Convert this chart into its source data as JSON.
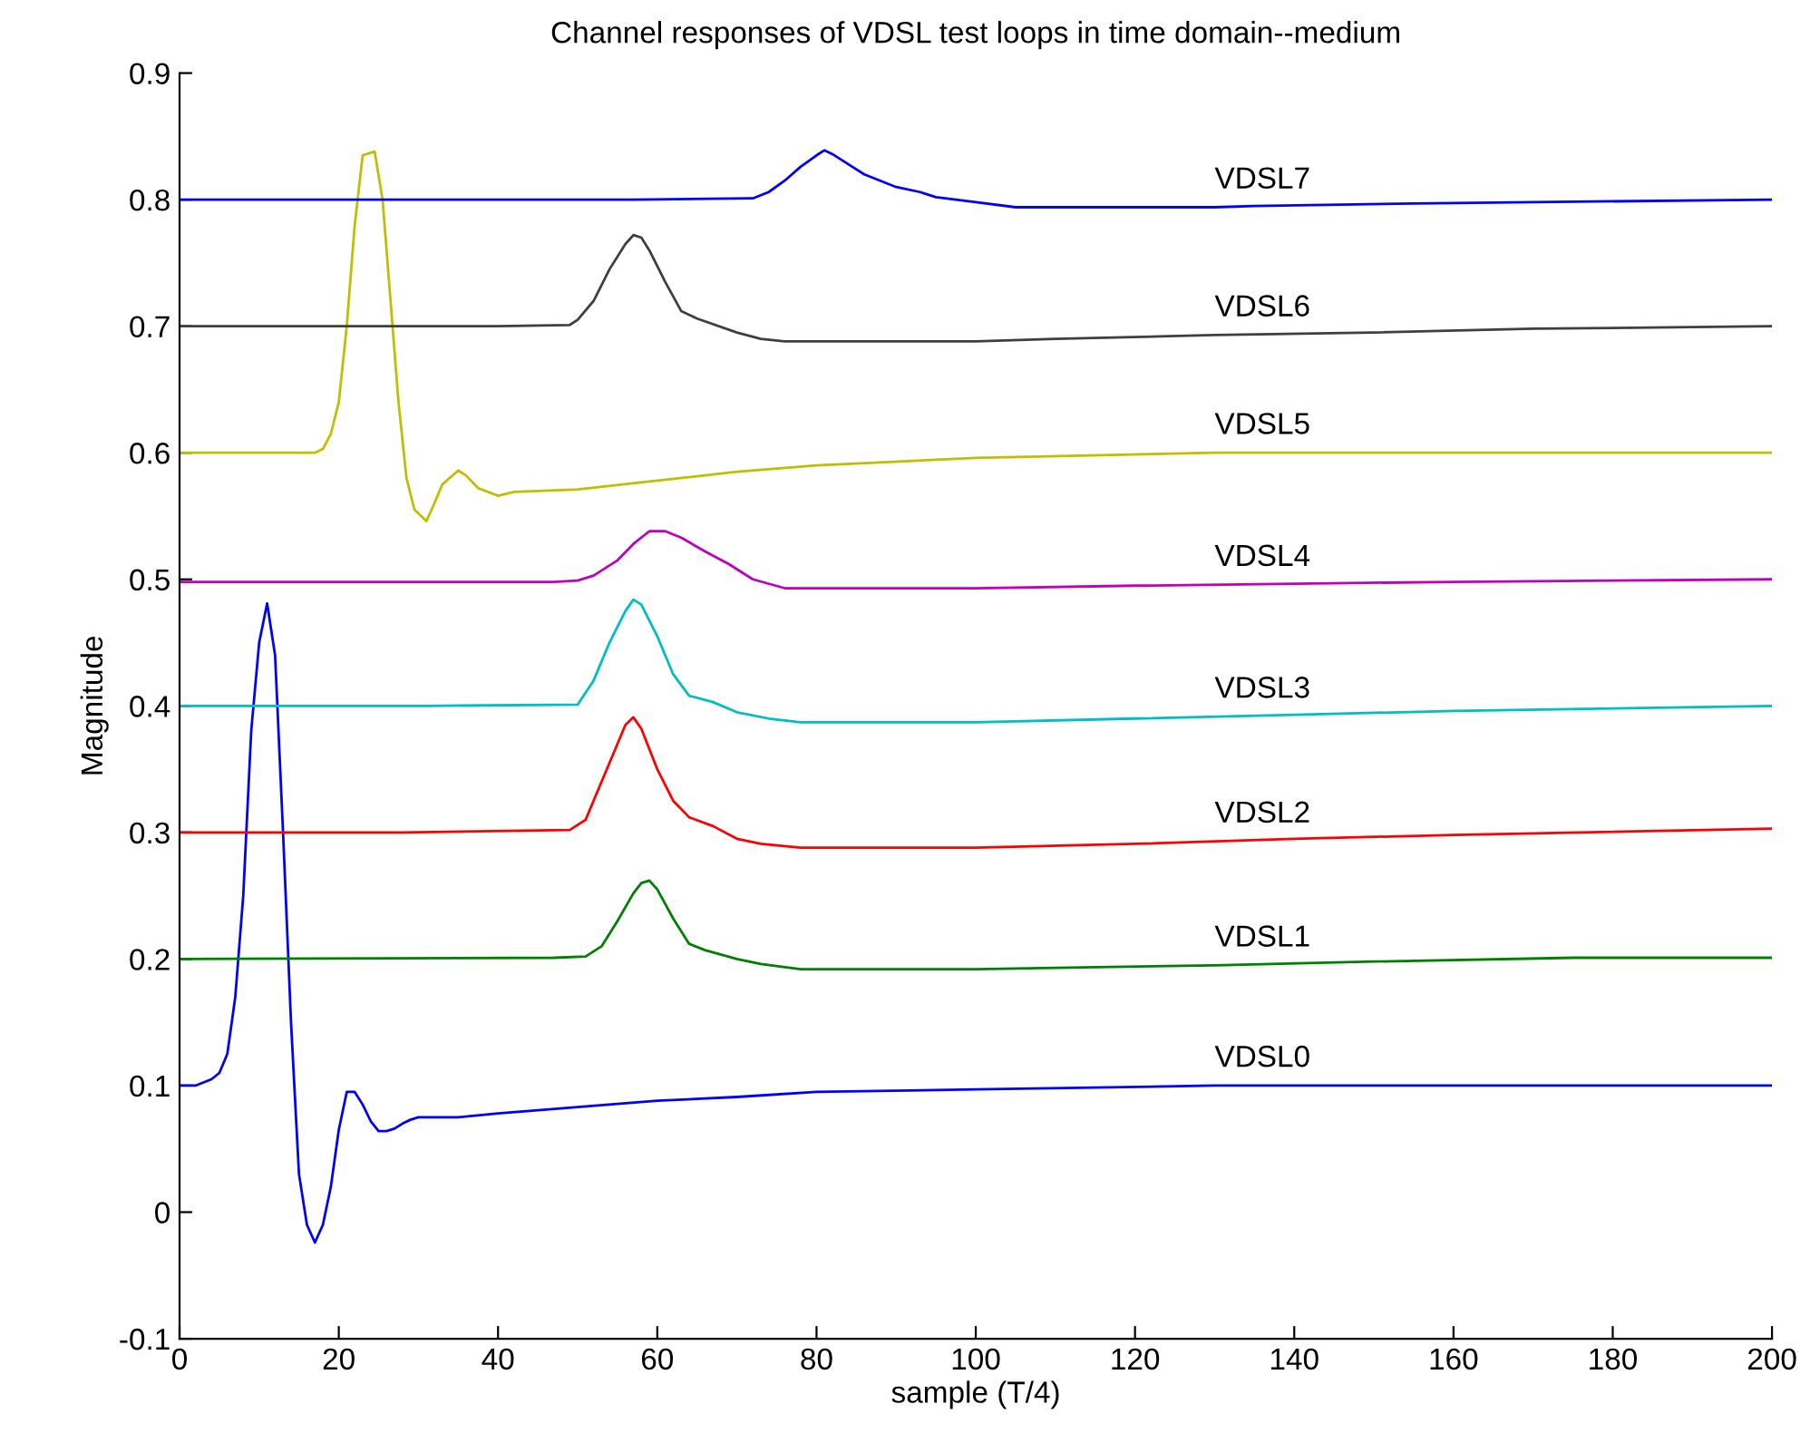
{
  "chart_data": {
    "type": "line",
    "title": "Channel responses of VDSL test loops in time domain--medium",
    "xlabel": "sample (T/4)",
    "ylabel": "Magnitude",
    "xlim": [
      0,
      200
    ],
    "xticks": [
      0,
      20,
      40,
      60,
      80,
      100,
      120,
      140,
      160,
      180,
      200
    ],
    "ylim": [
      -0.1,
      0.9
    ],
    "yticks": [
      -0.1,
      0,
      0.1,
      0.2,
      0.3,
      0.4,
      0.5,
      0.6,
      0.7,
      0.8,
      0.9
    ],
    "grid": false,
    "line_style": "solid",
    "marker": "none",
    "series": [
      {
        "name": "VDSL0",
        "color": "#0000ff",
        "x": [
          0,
          2,
          4,
          5,
          6,
          7,
          8,
          9,
          10,
          11,
          12,
          13,
          14,
          15,
          16,
          17,
          18,
          19,
          20,
          21,
          22,
          23,
          24,
          25,
          26,
          27,
          28,
          29,
          30,
          32,
          35,
          40,
          50,
          60,
          70,
          80,
          100,
          130,
          200
        ],
        "values": [
          0.1,
          0.1,
          0.105,
          0.11,
          0.125,
          0.17,
          0.25,
          0.38,
          0.45,
          0.481,
          0.44,
          0.3,
          0.15,
          0.03,
          -0.01,
          -0.024,
          -0.01,
          0.02,
          0.065,
          0.095,
          0.095,
          0.085,
          0.072,
          0.064,
          0.064,
          0.066,
          0.07,
          0.073,
          0.075,
          0.075,
          0.075,
          0.078,
          0.083,
          0.088,
          0.091,
          0.095,
          0.097,
          0.1,
          0.1
        ]
      },
      {
        "name": "VDSL1",
        "color": "#008000",
        "x": [
          0,
          47,
          51,
          53,
          55,
          57,
          58,
          59,
          60,
          62,
          64,
          66,
          70,
          73,
          78,
          100,
          110,
          130,
          150,
          175,
          200
        ],
        "values": [
          0.2,
          0.201,
          0.202,
          0.21,
          0.23,
          0.252,
          0.26,
          0.262,
          0.255,
          0.232,
          0.212,
          0.207,
          0.2,
          0.196,
          0.192,
          0.192,
          0.193,
          0.195,
          0.198,
          0.201,
          0.201
        ]
      },
      {
        "name": "VDSL2",
        "color": "#ff0000",
        "x": [
          0,
          28,
          49,
          51,
          53,
          55,
          56,
          57,
          58,
          60,
          62,
          64,
          67,
          70,
          73,
          78,
          100,
          120,
          140,
          160,
          200
        ],
        "values": [
          0.3,
          0.3,
          0.302,
          0.31,
          0.34,
          0.37,
          0.385,
          0.391,
          0.382,
          0.35,
          0.325,
          0.312,
          0.305,
          0.295,
          0.291,
          0.288,
          0.288,
          0.291,
          0.295,
          0.298,
          0.303
        ]
      },
      {
        "name": "VDSL3",
        "color": "#00bfbf",
        "x": [
          0,
          31,
          50,
          52,
          54,
          56,
          57,
          58,
          60,
          62,
          64,
          67,
          70,
          74,
          78,
          100,
          120,
          140,
          160,
          200
        ],
        "values": [
          0.4,
          0.4,
          0.401,
          0.42,
          0.45,
          0.475,
          0.484,
          0.48,
          0.455,
          0.425,
          0.408,
          0.403,
          0.395,
          0.39,
          0.387,
          0.387,
          0.39,
          0.393,
          0.396,
          0.4
        ]
      },
      {
        "name": "VDSL4",
        "color": "#bf00bf",
        "x": [
          0,
          47,
          50,
          52,
          55,
          57,
          59,
          61,
          63,
          66,
          69,
          72,
          76,
          100,
          120,
          160,
          200
        ],
        "values": [
          0.498,
          0.498,
          0.499,
          0.503,
          0.515,
          0.528,
          0.538,
          0.538,
          0.533,
          0.522,
          0.512,
          0.5,
          0.493,
          0.493,
          0.495,
          0.498,
          0.5
        ]
      },
      {
        "name": "VDSL5",
        "color": "#bfbf00",
        "x": [
          0,
          17,
          18,
          19,
          20,
          21,
          22,
          23,
          24.5,
          25.5,
          26.5,
          27.5,
          28.5,
          29.5,
          31,
          32,
          33,
          35,
          36,
          37.5,
          40,
          42,
          50,
          60,
          70,
          80,
          100,
          130,
          200
        ],
        "values": [
          0.6,
          0.6,
          0.603,
          0.615,
          0.64,
          0.7,
          0.78,
          0.835,
          0.838,
          0.8,
          0.72,
          0.64,
          0.58,
          0.555,
          0.546,
          0.56,
          0.575,
          0.586,
          0.582,
          0.572,
          0.566,
          0.569,
          0.571,
          0.578,
          0.585,
          0.59,
          0.596,
          0.6,
          0.6
        ]
      },
      {
        "name": "VDSL6",
        "color": "#3f3f3f",
        "x": [
          0,
          40,
          49,
          50,
          52,
          54,
          56,
          57,
          58,
          59,
          61,
          63,
          65,
          70,
          73,
          76,
          100,
          110,
          130,
          150,
          170,
          200
        ],
        "values": [
          0.7,
          0.7,
          0.701,
          0.705,
          0.72,
          0.745,
          0.765,
          0.772,
          0.77,
          0.76,
          0.735,
          0.712,
          0.706,
          0.695,
          0.69,
          0.688,
          0.688,
          0.69,
          0.693,
          0.695,
          0.698,
          0.7
        ]
      },
      {
        "name": "VDSL7",
        "color": "#0000ff",
        "x": [
          0,
          57,
          72,
          74,
          76,
          78,
          80,
          81,
          82,
          84,
          86,
          88,
          90,
          93,
          95,
          100,
          105,
          130,
          135,
          155,
          200
        ],
        "values": [
          0.8,
          0.8,
          0.801,
          0.806,
          0.815,
          0.826,
          0.835,
          0.839,
          0.836,
          0.828,
          0.82,
          0.815,
          0.81,
          0.806,
          0.802,
          0.798,
          0.794,
          0.794,
          0.795,
          0.797,
          0.8
        ]
      }
    ]
  }
}
